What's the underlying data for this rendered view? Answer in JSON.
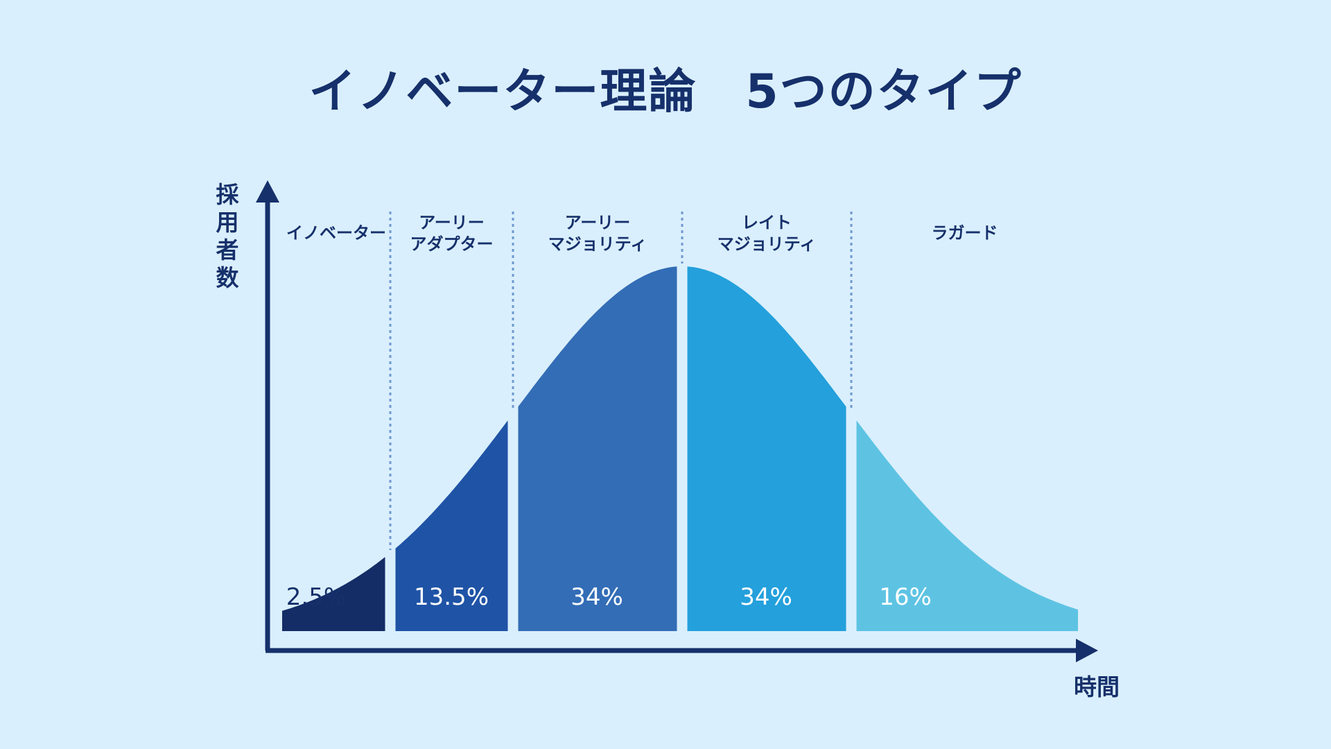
{
  "title": "イノベーター理論　5つのタイプ",
  "y_axis_label": [
    "採",
    "用",
    "者",
    "数"
  ],
  "x_axis_label": "時間",
  "colors": {
    "background": "#daeffd",
    "axis": "#16306b",
    "divider": "#6f98cf"
  },
  "segments": [
    {
      "label_lines": [
        "イノベーター"
      ],
      "percent": "2.5%",
      "share": 2.5,
      "color": "#142d66",
      "text_color": "#16306b"
    },
    {
      "label_lines": [
        "アーリー",
        "アダプター"
      ],
      "percent": "13.5%",
      "share": 13.5,
      "color": "#1f53a6",
      "text_color": "#ffffff"
    },
    {
      "label_lines": [
        "アーリー",
        "マジョリティ"
      ],
      "percent": "34%",
      "share": 34,
      "color": "#336db6",
      "text_color": "#ffffff"
    },
    {
      "label_lines": [
        "レイト",
        "マジョリティ"
      ],
      "percent": "34%",
      "share": 34,
      "color": "#24a0dc",
      "text_color": "#ffffff"
    },
    {
      "label_lines": [
        "ラガード"
      ],
      "percent": "16%",
      "share": 16,
      "color": "#5ec3e3",
      "text_color": "#ffffff"
    }
  ]
}
